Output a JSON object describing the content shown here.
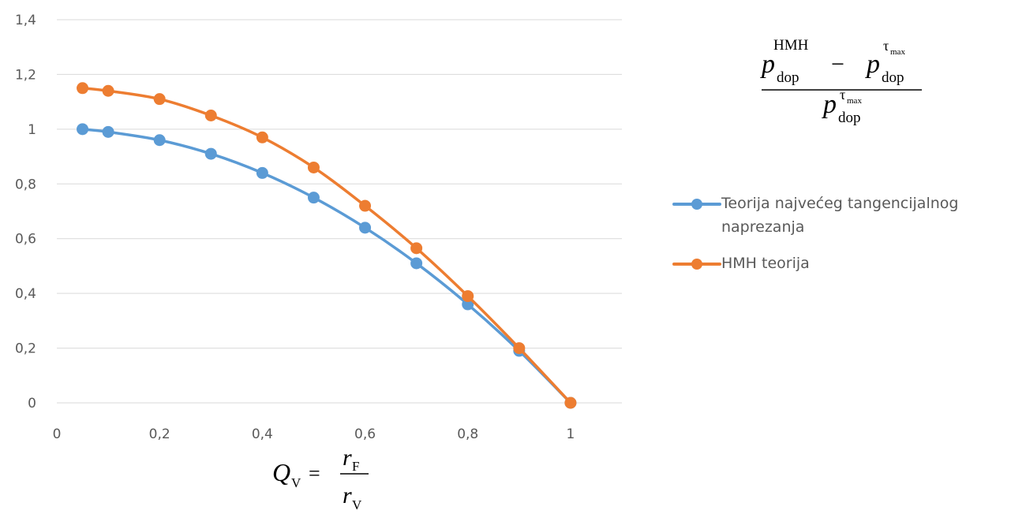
{
  "chart_data": {
    "type": "line",
    "x": [
      0.05,
      0.1,
      0.2,
      0.3,
      0.4,
      0.5,
      0.6,
      0.7,
      0.8,
      0.9,
      1.0
    ],
    "series": [
      {
        "name": "Teorija najvećeg tangencijalnog naprezanja",
        "color": "#5B9BD5",
        "values": [
          1.0,
          0.99,
          0.96,
          0.91,
          0.84,
          0.75,
          0.64,
          0.51,
          0.36,
          0.19,
          0.0
        ]
      },
      {
        "name": "HMH teorija",
        "color": "#ED7D31",
        "values": [
          1.15,
          1.14,
          1.11,
          1.05,
          0.97,
          0.86,
          0.72,
          0.565,
          0.39,
          0.2,
          0.0
        ]
      }
    ],
    "xlim": [
      0,
      1.1
    ],
    "ylim": [
      0,
      1.4
    ],
    "x_ticks": [
      "0",
      "0,2",
      "0,4",
      "0,6",
      "0,8",
      "1"
    ],
    "y_ticks": [
      "0",
      "0,2",
      "0,4",
      "0,6",
      "0,8",
      "1",
      "1,2",
      "1,4"
    ],
    "grid": "horizontal",
    "legend_position": "right",
    "xlabel": "Q_V = r_F / r_V",
    "ylabel": "(p_dop^HMH − p_dop^τmax) / p_dop^τmax"
  },
  "formula_y": {
    "p": "p",
    "sub": "dop",
    "sup_hmh": "HMH",
    "minus": "−",
    "tau": "τ",
    "max": "max"
  },
  "formula_x": {
    "q": "Q",
    "q_sub": "V",
    "eq": "=",
    "r": "r",
    "num_sub": "F",
    "den_sub": "V"
  }
}
